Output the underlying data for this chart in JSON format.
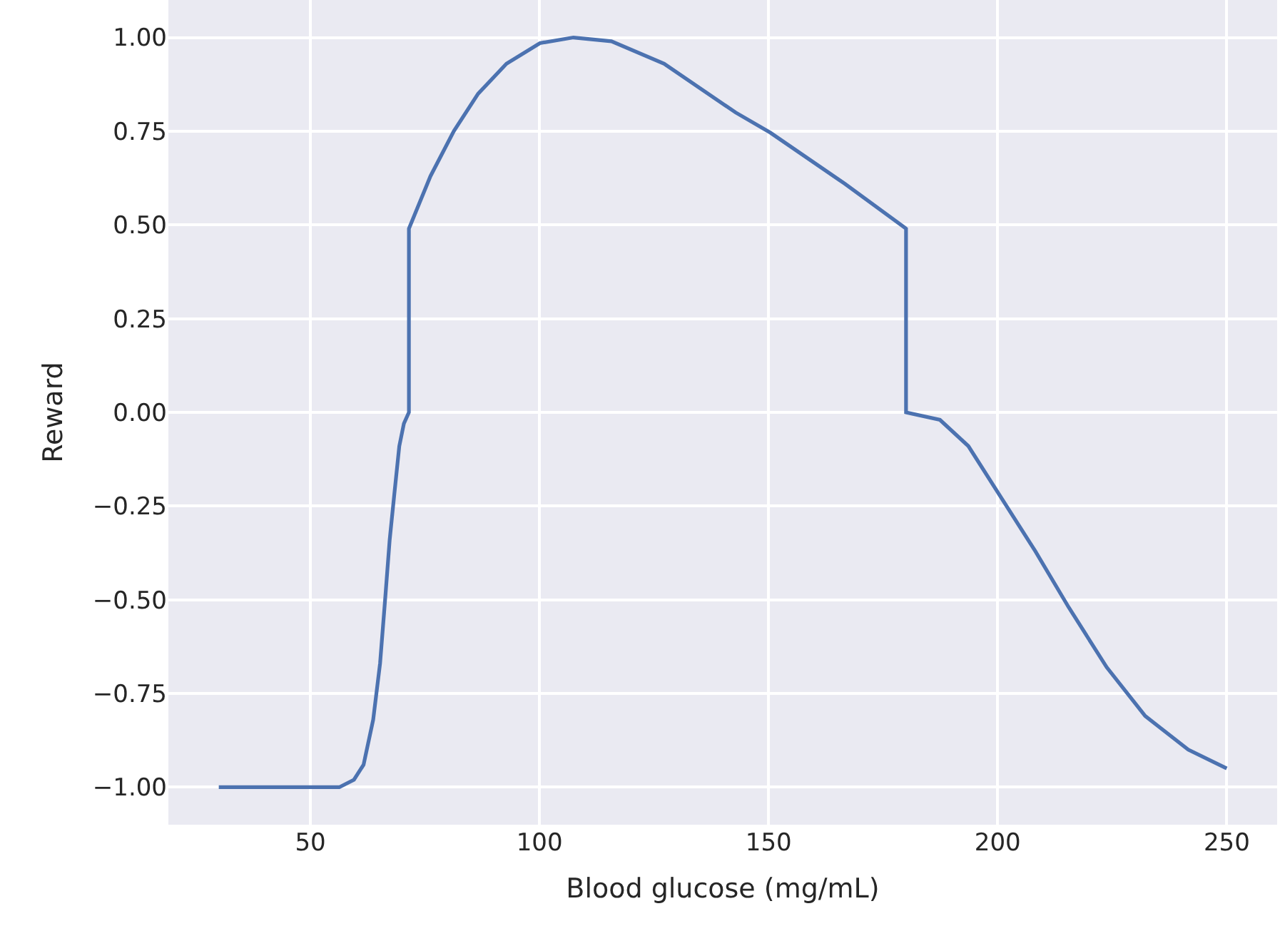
{
  "chart_data": {
    "type": "line",
    "xlabel": "Blood glucose (mg/mL)",
    "ylabel": "Reward",
    "x": [
      30,
      56.3,
      59.5,
      61.6,
      63.7,
      65.2,
      66.3,
      67.3,
      68.3,
      69.4,
      70.4,
      71.5,
      71.5,
      76.2,
      81.3,
      86.6,
      92.8,
      100.1,
      107.4,
      115.7,
      127.2,
      142.8,
      150.4,
      166.6,
      180,
      180,
      187.4,
      193.6,
      200.9,
      208.2,
      215.5,
      223.8,
      232.2,
      241.6,
      250
    ],
    "series": [
      {
        "color": "#4c72b0",
        "values": [
          -1.0,
          -1.0,
          -0.98,
          -0.94,
          -0.82,
          -0.67,
          -0.5,
          -0.34,
          -0.22,
          -0.09,
          -0.03,
          0.0,
          0.49,
          0.63,
          0.75,
          0.85,
          0.93,
          0.985,
          1.0,
          0.99,
          0.93,
          0.8,
          0.746,
          0.61,
          0.49,
          0.0,
          -0.02,
          -0.09,
          -0.23,
          -0.37,
          -0.52,
          -0.68,
          -0.81,
          -0.9,
          -0.95
        ]
      }
    ],
    "xlim": [
      19,
      261
    ],
    "xticks": [
      50,
      100,
      150,
      200,
      250
    ],
    "ylim": [
      -1.1,
      1.1
    ],
    "yticks": [
      {
        "value": -1,
        "label": "−1.00"
      },
      {
        "value": -0.75,
        "label": "−0.75"
      },
      {
        "value": -0.5,
        "label": "−0.50"
      },
      {
        "value": -0.25,
        "label": "−0.25"
      },
      {
        "value": 0,
        "label": "0.00"
      },
      {
        "value": 0.25,
        "label": "0.25"
      },
      {
        "value": 0.5,
        "label": "0.50"
      },
      {
        "value": 0.75,
        "label": "0.75"
      },
      {
        "value": 1,
        "label": "1.00"
      }
    ],
    "grid": true,
    "marker": "none",
    "line_style": "solid"
  }
}
